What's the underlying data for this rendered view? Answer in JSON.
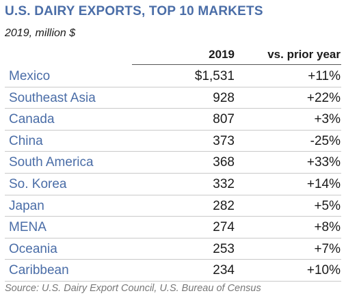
{
  "title": "U.S. DAIRY EXPORTS, TOP 10 MARKETS",
  "subtitle": "2019, million $",
  "columns": {
    "year": "2019",
    "change": "vs. prior year"
  },
  "rows": [
    {
      "market": "Mexico",
      "value": "$1,531",
      "change": "+11%"
    },
    {
      "market": "Southeast Asia",
      "value": "928",
      "change": "+22%"
    },
    {
      "market": "Canada",
      "value": "807",
      "change": "+3%"
    },
    {
      "market": "China",
      "value": "373",
      "change": "-25%"
    },
    {
      "market": "South America",
      "value": "368",
      "change": "+33%"
    },
    {
      "market": "So. Korea",
      "value": "332",
      "change": "+14%"
    },
    {
      "market": "Japan",
      "value": "282",
      "change": "+5%"
    },
    {
      "market": "MENA",
      "value": "274",
      "change": "+8%"
    },
    {
      "market": "Oceania",
      "value": "253",
      "change": "+7%"
    },
    {
      "market": "Caribbean",
      "value": "234",
      "change": "+10%"
    }
  ],
  "source": "Source: U.S. Dairy Export Council, U.S. Bureau of Census",
  "colors": {
    "title": "#4a6da7",
    "market_text": "#4a6da7",
    "body_text": "#1a1a1a",
    "source_text": "#777777",
    "row_divider": "#c9c9c9"
  }
}
